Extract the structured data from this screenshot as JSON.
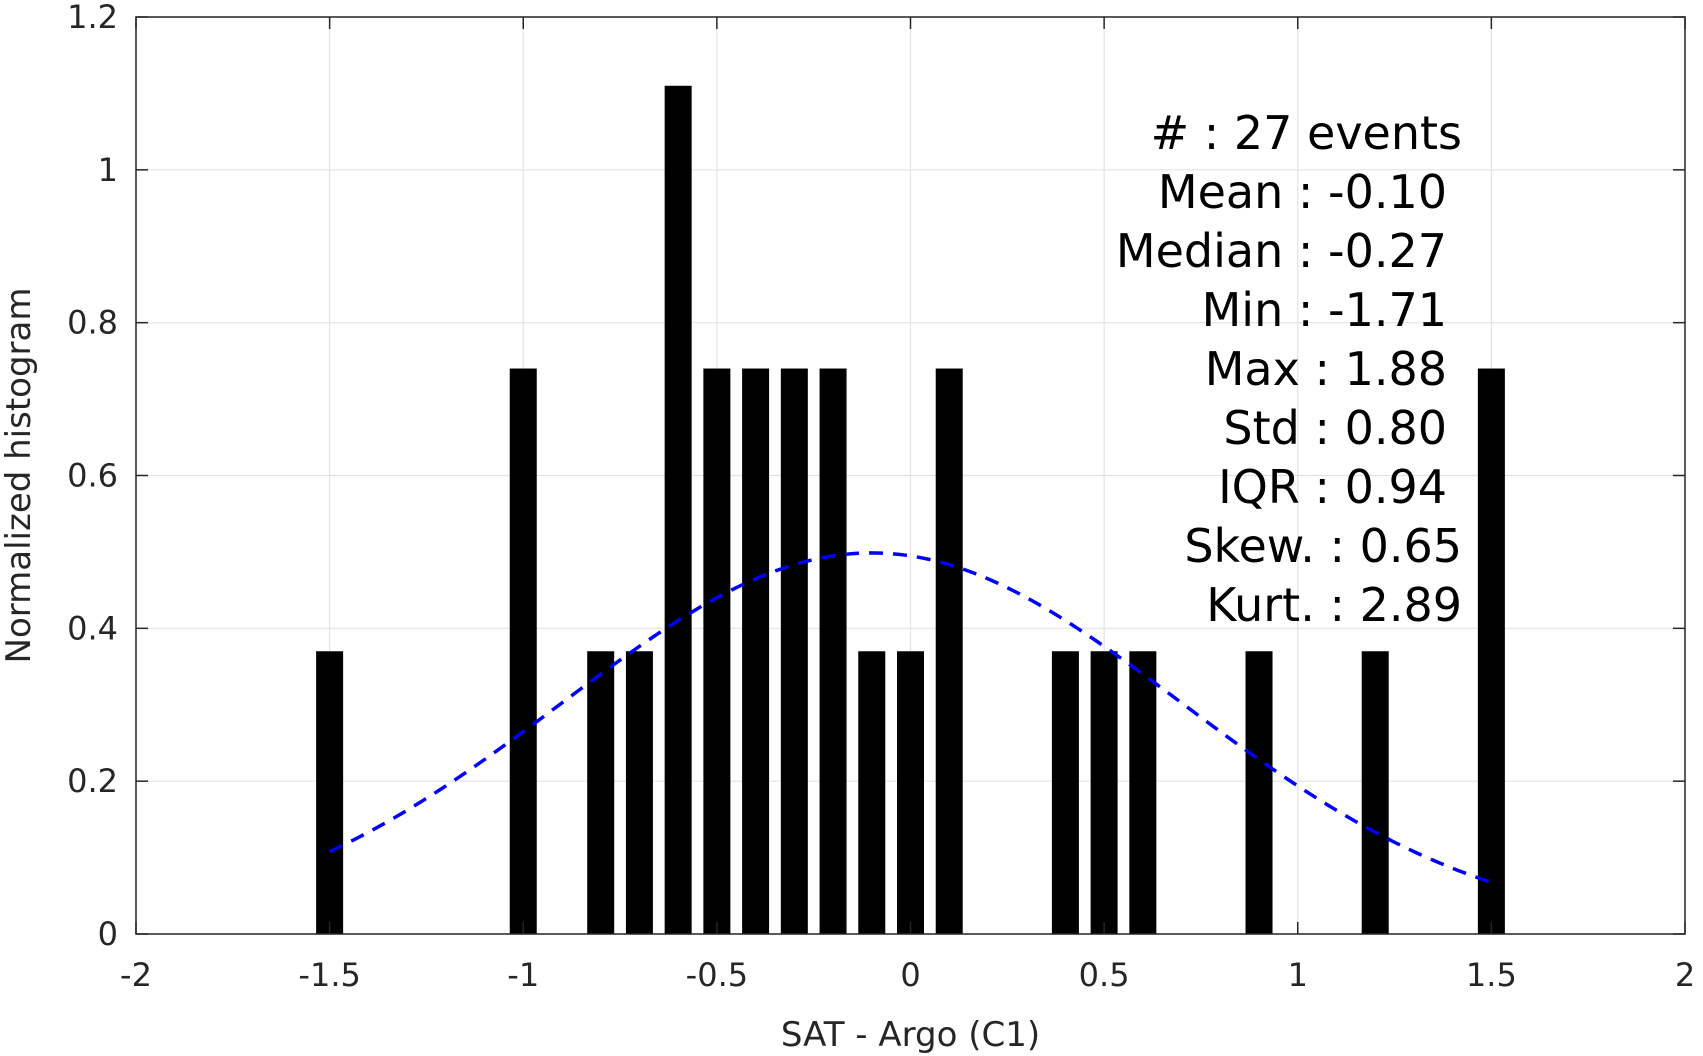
{
  "chart_data": {
    "type": "bar",
    "title": "",
    "xlabel": "SAT - Argo (C1)",
    "ylabel": "Normalized histogram",
    "xlim": [
      -2,
      2
    ],
    "ylim": [
      0,
      1.2
    ],
    "xticks": [
      "-2",
      "-1.5",
      "-1",
      "-0.5",
      "0",
      "0.5",
      "1",
      "1.5",
      "2"
    ],
    "yticks": [
      "0",
      "0.2",
      "0.4",
      "0.6",
      "0.8",
      "1",
      "1.2"
    ],
    "grid": true,
    "bar_color": "#000000",
    "bars": [
      {
        "x": -1.5,
        "y": 0.37
      },
      {
        "x": -1.0,
        "y": 0.74
      },
      {
        "x": -0.8,
        "y": 0.37
      },
      {
        "x": -0.7,
        "y": 0.37
      },
      {
        "x": -0.6,
        "y": 1.11
      },
      {
        "x": -0.5,
        "y": 0.74
      },
      {
        "x": -0.4,
        "y": 0.74
      },
      {
        "x": -0.3,
        "y": 0.74
      },
      {
        "x": -0.2,
        "y": 0.74
      },
      {
        "x": -0.1,
        "y": 0.37
      },
      {
        "x": 0.0,
        "y": 0.37
      },
      {
        "x": 0.1,
        "y": 0.74
      },
      {
        "x": 0.4,
        "y": 0.37
      },
      {
        "x": 0.5,
        "y": 0.37
      },
      {
        "x": 0.6,
        "y": 0.37
      },
      {
        "x": 0.9,
        "y": 0.37
      },
      {
        "x": 1.2,
        "y": 0.37
      },
      {
        "x": 1.5,
        "y": 0.74
      }
    ],
    "fit_curve": {
      "style": "dashed",
      "color": "#0000ff",
      "mean": -0.1,
      "std": 0.8,
      "x_range": [
        -1.5,
        1.5
      ]
    },
    "stats": [
      "#  : 27 events",
      "Mean : -0.10",
      "Median : -0.27",
      "Min : -1.71",
      "Max : 1.88",
      "Std : 0.80",
      "IQR : 0.94",
      "Skew. : 0.65",
      "Kurt. : 2.89"
    ]
  }
}
